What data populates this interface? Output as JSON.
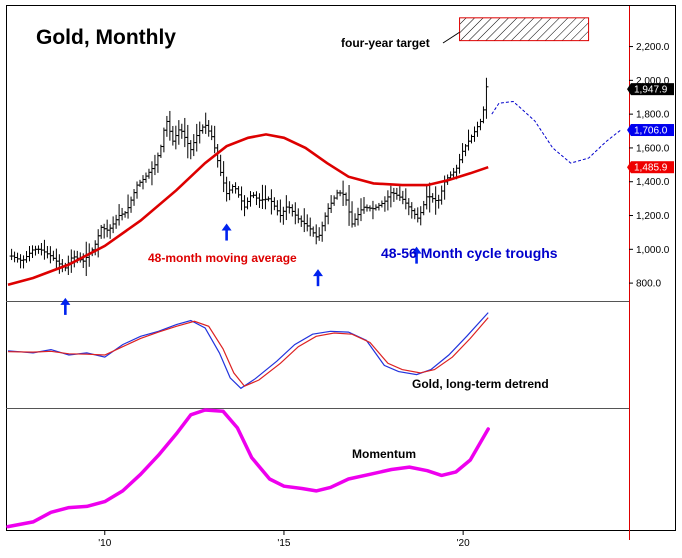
{
  "chart_data": {
    "type": "line",
    "title": "Gold, Monthly",
    "x_range": [
      2007.3,
      2024.6
    ],
    "x_ticks": [
      {
        "year": 2010,
        "label": "'10"
      },
      {
        "year": 2015,
        "label": "'15"
      },
      {
        "year": 2020,
        "label": "'20"
      }
    ],
    "price_panel": {
      "y_range": [
        700,
        2440
      ],
      "y_ticks": [
        800,
        1000,
        1200,
        1400,
        1600,
        1800,
        2000,
        2200
      ],
      "y_tick_labels": [
        "800.0",
        "1,000.0",
        "1,200.0",
        "1,400.0",
        "1,600.0",
        "1,800.0",
        "2,000.0",
        "2,200.0"
      ],
      "price_path": [
        [
          2007.4,
          960
        ],
        [
          2007.7,
          930
        ],
        [
          2008.0,
          1000
        ],
        [
          2008.2,
          1000
        ],
        [
          2008.5,
          960
        ],
        [
          2008.8,
          900
        ],
        [
          2008.9,
          890
        ],
        [
          2009.1,
          960
        ],
        [
          2009.4,
          930
        ],
        [
          2009.7,
          1010
        ],
        [
          2009.9,
          1130
        ],
        [
          2010.1,
          1110
        ],
        [
          2010.4,
          1200
        ],
        [
          2010.6,
          1220
        ],
        [
          2010.9,
          1380
        ],
        [
          2011.1,
          1420
        ],
        [
          2011.4,
          1500
        ],
        [
          2011.6,
          1630
        ],
        [
          2011.7,
          1780
        ],
        [
          2011.9,
          1640
        ],
        [
          2012.1,
          1720
        ],
        [
          2012.4,
          1590
        ],
        [
          2012.6,
          1690
        ],
        [
          2012.8,
          1740
        ],
        [
          2013.0,
          1660
        ],
        [
          2013.2,
          1480
        ],
        [
          2013.4,
          1330
        ],
        [
          2013.6,
          1380
        ],
        [
          2013.9,
          1250
        ],
        [
          2014.1,
          1330
        ],
        [
          2014.3,
          1290
        ],
        [
          2014.6,
          1300
        ],
        [
          2014.9,
          1200
        ],
        [
          2015.1,
          1260
        ],
        [
          2015.4,
          1180
        ],
        [
          2015.7,
          1130
        ],
        [
          2015.95,
          1060
        ],
        [
          2016.2,
          1230
        ],
        [
          2016.5,
          1340
        ],
        [
          2016.7,
          1320
        ],
        [
          2016.9,
          1150
        ],
        [
          2017.2,
          1250
        ],
        [
          2017.5,
          1240
        ],
        [
          2017.8,
          1280
        ],
        [
          2018.0,
          1340
        ],
        [
          2018.3,
          1300
        ],
        [
          2018.6,
          1220
        ],
        [
          2018.75,
          1180
        ],
        [
          2019.0,
          1320
        ],
        [
          2019.3,
          1280
        ],
        [
          2019.5,
          1410
        ],
        [
          2019.8,
          1470
        ],
        [
          2020.0,
          1590
        ],
        [
          2020.3,
          1690
        ],
        [
          2020.55,
          1780
        ],
        [
          2020.62,
          1970
        ],
        [
          2020.7,
          1947.9
        ]
      ],
      "ma_48_month": [
        [
          2007.3,
          790
        ],
        [
          2008.0,
          830
        ],
        [
          2009.0,
          910
        ],
        [
          2010.0,
          1020
        ],
        [
          2011.0,
          1170
        ],
        [
          2012.0,
          1350
        ],
        [
          2012.8,
          1510
        ],
        [
          2013.4,
          1610
        ],
        [
          2014.0,
          1660
        ],
        [
          2014.5,
          1680
        ],
        [
          2015.0,
          1660
        ],
        [
          2015.6,
          1600
        ],
        [
          2016.2,
          1510
        ],
        [
          2016.8,
          1430
        ],
        [
          2017.5,
          1390
        ],
        [
          2018.3,
          1380
        ],
        [
          2019.0,
          1380
        ],
        [
          2019.6,
          1410
        ],
        [
          2020.2,
          1450
        ],
        [
          2020.7,
          1485.9
        ]
      ],
      "projection": [
        [
          2020.8,
          1800
        ],
        [
          2021.0,
          1865
        ],
        [
          2021.4,
          1875
        ],
        [
          2022.0,
          1760
        ],
        [
          2022.5,
          1600
        ],
        [
          2023.0,
          1510
        ],
        [
          2023.5,
          1540
        ],
        [
          2024.0,
          1640
        ],
        [
          2024.4,
          1706.0
        ]
      ],
      "cycle_troughs": [
        2008.9,
        2013.4,
        2015.95,
        2018.7
      ],
      "target_box": {
        "x": [
          2019.9,
          2023.5
        ],
        "y": [
          2235,
          2370
        ]
      },
      "last_values": [
        {
          "label": "1,947.9",
          "value": 1947.9,
          "color": "#000000"
        },
        {
          "label": "1,706.0",
          "value": 1706.0,
          "color": "#0000ee"
        },
        {
          "label": "1,485.9",
          "value": 1485.9,
          "color": "#ee0000"
        }
      ],
      "annotations": {
        "four_year_target": "four-year target",
        "ma_label": "48-month moving average",
        "cycle_label": "48-56 Month cycle troughs"
      }
    },
    "detrend_panel": {
      "label": "Gold, long-term detrend",
      "y_range": [
        -1.2,
        1.3
      ],
      "blue": [
        [
          2007.3,
          0.15
        ],
        [
          2008.0,
          0.1
        ],
        [
          2008.5,
          0.18
        ],
        [
          2009.0,
          0.05
        ],
        [
          2009.5,
          0.1
        ],
        [
          2010.0,
          0.0
        ],
        [
          2010.5,
          0.3
        ],
        [
          2011.0,
          0.5
        ],
        [
          2011.5,
          0.62
        ],
        [
          2012.0,
          0.78
        ],
        [
          2012.4,
          0.88
        ],
        [
          2012.8,
          0.7
        ],
        [
          2013.2,
          0.1
        ],
        [
          2013.5,
          -0.5
        ],
        [
          2013.8,
          -0.75
        ],
        [
          2014.2,
          -0.52
        ],
        [
          2014.8,
          -0.1
        ],
        [
          2015.3,
          0.3
        ],
        [
          2015.8,
          0.55
        ],
        [
          2016.3,
          0.62
        ],
        [
          2016.8,
          0.6
        ],
        [
          2017.3,
          0.4
        ],
        [
          2017.8,
          -0.2
        ],
        [
          2018.2,
          -0.35
        ],
        [
          2018.7,
          -0.42
        ],
        [
          2019.1,
          -0.3
        ],
        [
          2019.6,
          0.05
        ],
        [
          2020.1,
          0.5
        ],
        [
          2020.7,
          1.07
        ]
      ],
      "red": [
        [
          2007.3,
          0.13
        ],
        [
          2008.0,
          0.12
        ],
        [
          2008.5,
          0.14
        ],
        [
          2009.0,
          0.08
        ],
        [
          2009.5,
          0.07
        ],
        [
          2010.0,
          0.05
        ],
        [
          2010.5,
          0.25
        ],
        [
          2011.0,
          0.45
        ],
        [
          2011.5,
          0.6
        ],
        [
          2012.0,
          0.74
        ],
        [
          2012.5,
          0.86
        ],
        [
          2012.9,
          0.74
        ],
        [
          2013.3,
          0.2
        ],
        [
          2013.6,
          -0.38
        ],
        [
          2013.9,
          -0.7
        ],
        [
          2014.3,
          -0.55
        ],
        [
          2014.9,
          -0.15
        ],
        [
          2015.4,
          0.25
        ],
        [
          2015.9,
          0.5
        ],
        [
          2016.4,
          0.58
        ],
        [
          2016.9,
          0.55
        ],
        [
          2017.4,
          0.35
        ],
        [
          2017.9,
          -0.15
        ],
        [
          2018.3,
          -0.3
        ],
        [
          2018.8,
          -0.38
        ],
        [
          2019.2,
          -0.3
        ],
        [
          2019.7,
          0.0
        ],
        [
          2020.2,
          0.45
        ],
        [
          2020.7,
          0.95
        ]
      ]
    },
    "momentum_panel": {
      "label": "Momentum",
      "y_range": [
        0,
        100
      ],
      "values": [
        [
          2007.3,
          2
        ],
        [
          2008.0,
          6
        ],
        [
          2008.5,
          14
        ],
        [
          2009.0,
          18
        ],
        [
          2009.5,
          19
        ],
        [
          2010.0,
          23
        ],
        [
          2010.5,
          32
        ],
        [
          2011.0,
          46
        ],
        [
          2011.5,
          62
        ],
        [
          2012.0,
          80
        ],
        [
          2012.4,
          96
        ],
        [
          2012.8,
          100
        ],
        [
          2013.3,
          99
        ],
        [
          2013.7,
          85
        ],
        [
          2014.1,
          60
        ],
        [
          2014.6,
          42
        ],
        [
          2015.0,
          36
        ],
        [
          2015.5,
          34
        ],
        [
          2015.9,
          32
        ],
        [
          2016.3,
          35
        ],
        [
          2016.8,
          42
        ],
        [
          2017.4,
          46
        ],
        [
          2018.0,
          50
        ],
        [
          2018.5,
          52
        ],
        [
          2019.0,
          49
        ],
        [
          2019.4,
          45
        ],
        [
          2019.8,
          48
        ],
        [
          2020.2,
          58
        ],
        [
          2020.7,
          84
        ]
      ]
    },
    "colors": {
      "price": "#000000",
      "ma": "#dd0000",
      "projection": "#0000cc",
      "arrow": "#0022ee",
      "detrend_blue": "#2233dd",
      "detrend_red": "#dd2222",
      "momentum": "#ee00ee",
      "divider": "#dd0000"
    }
  }
}
